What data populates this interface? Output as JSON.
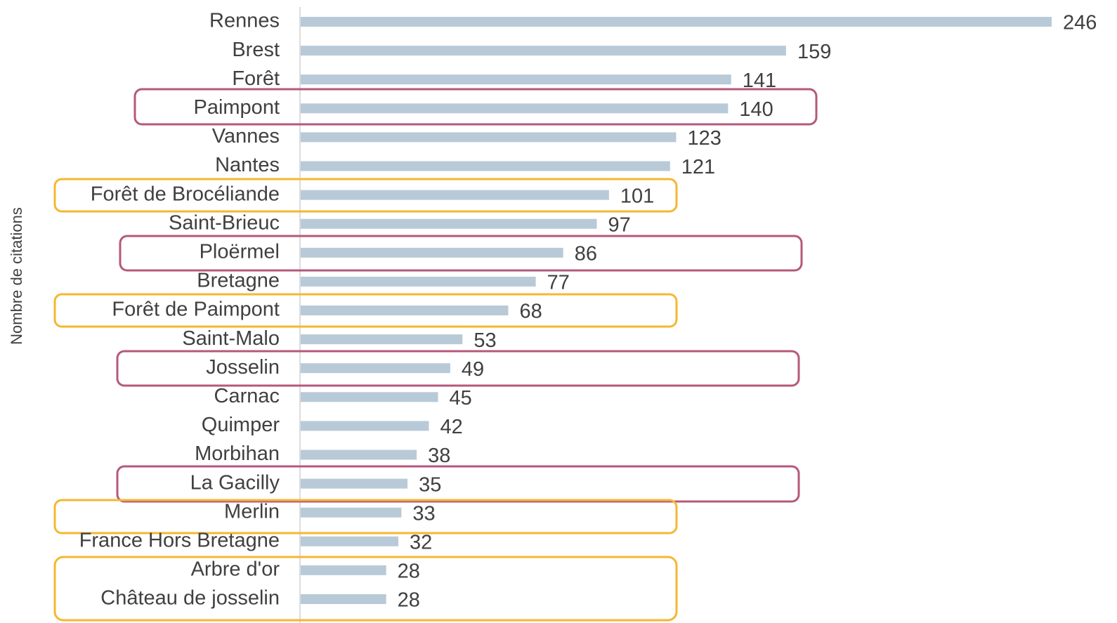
{
  "chart_data": {
    "type": "bar",
    "orientation": "horizontal",
    "y_label": "Nombre de citations",
    "categories": [
      "Rennes",
      "Brest",
      "Forêt",
      "Paimpont",
      "Vannes",
      "Nantes",
      "Forêt de Brocéliande",
      "Saint-Brieuc",
      "Ploërmel",
      "Bretagne",
      "Forêt de Paimpont",
      "Saint-Malo",
      "Josselin",
      "Carnac",
      "Quimper",
      "Morbihan",
      "La Gacilly",
      "Merlin",
      "France Hors Bretagne",
      "Arbre d'or",
      "Château de josselin"
    ],
    "values": [
      246,
      159,
      141,
      140,
      123,
      121,
      101,
      97,
      86,
      77,
      68,
      53,
      49,
      45,
      42,
      38,
      35,
      33,
      32,
      28,
      28
    ],
    "color": "#b8cad8",
    "xlim": [
      0,
      246
    ]
  }
}
